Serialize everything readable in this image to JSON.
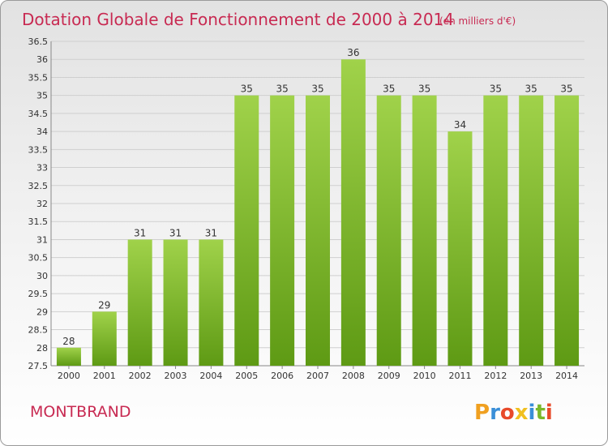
{
  "chart_data": {
    "type": "bar",
    "title": "Dotation Globale de Fonctionnement de 2000 à 2014",
    "subtitle": "(en milliers d'€)",
    "categories": [
      "2000",
      "2001",
      "2002",
      "2003",
      "2004",
      "2005",
      "2006",
      "2007",
      "2008",
      "2009",
      "2010",
      "2011",
      "2012",
      "2013",
      "2014"
    ],
    "values": [
      28,
      29,
      31,
      31,
      31,
      35,
      35,
      35,
      36,
      35,
      35,
      34,
      35,
      35,
      35
    ],
    "value_labels": [
      "28",
      "29",
      "31",
      "31",
      "31",
      "35",
      "35",
      "35",
      "36",
      "35",
      "35",
      "34",
      "35",
      "35",
      "35"
    ],
    "ylim": [
      27.5,
      36.5
    ],
    "yticks": [
      "27.5",
      "28",
      "28.5",
      "29",
      "29.5",
      "30",
      "30.5",
      "31",
      "31.5",
      "32",
      "32.5",
      "33",
      "33.5",
      "34",
      "34.5",
      "35",
      "35.5",
      "36",
      "36.5"
    ],
    "grid": true,
    "bar_color": "#8cc43c",
    "bar_color_dark": "#5e9a14"
  },
  "commune": "MONTBRAND",
  "logo": {
    "text": "Proxiti",
    "letters": [
      "P",
      "r",
      "o",
      "x",
      "i",
      "t",
      "i"
    ],
    "colors": [
      "#f0a020",
      "#3a8fd8",
      "#e84a2a",
      "#f0c020",
      "#3a8fd8",
      "#7ab82a",
      "#e84a2a"
    ]
  },
  "colors": {
    "title": "#c82a52",
    "grid": "#cfcfcf"
  }
}
